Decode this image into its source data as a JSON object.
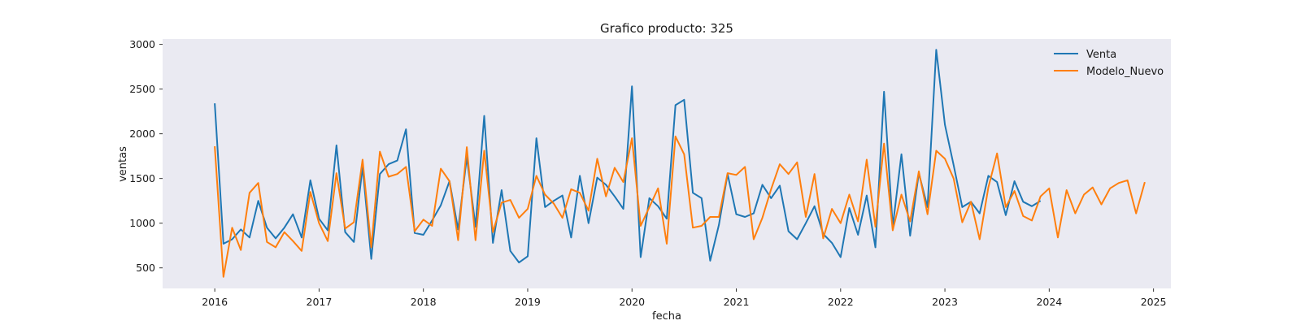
{
  "chart_data": {
    "type": "line",
    "title": "Grafico producto: 325",
    "xlabel": "fecha",
    "ylabel": "ventas",
    "x_start": "2016-01",
    "xlim": [
      "2015-07",
      "2025-03"
    ],
    "ylim": [
      270,
      3060
    ],
    "x_ticks": [
      "2016",
      "2017",
      "2018",
      "2019",
      "2020",
      "2021",
      "2022",
      "2023",
      "2024",
      "2025"
    ],
    "y_ticks": [
      500,
      1000,
      1500,
      2000,
      2500,
      3000
    ],
    "grid": false,
    "background": "#eaeaf2",
    "legend_position": "top-right",
    "series": [
      {
        "name": "Venta",
        "color": "#1f77b4",
        "values": [
          2340,
          770,
          820,
          930,
          840,
          1250,
          950,
          830,
          950,
          1100,
          840,
          1480,
          1050,
          920,
          1870,
          900,
          790,
          1630,
          600,
          1550,
          1660,
          1700,
          2050,
          890,
          870,
          1030,
          1200,
          1470,
          930,
          1740,
          960,
          2200,
          780,
          1370,
          690,
          560,
          630,
          1950,
          1180,
          1250,
          1310,
          840,
          1530,
          1000,
          1510,
          1430,
          1300,
          1160,
          2530,
          620,
          1280,
          1190,
          1050,
          2320,
          2380,
          1340,
          1280,
          580,
          980,
          1550,
          1100,
          1070,
          1110,
          1430,
          1280,
          1420,
          910,
          820,
          1000,
          1190,
          880,
          780,
          620,
          1170,
          870,
          1310,
          730,
          2470,
          960,
          1770,
          860,
          1560,
          1180,
          2940,
          2100,
          1650,
          1180,
          1240,
          1110,
          1530,
          1460,
          1090,
          1470,
          1240,
          1190,
          1250
        ]
      },
      {
        "name": "Modelo_Nuevo",
        "color": "#ff7f0e",
        "values": [
          1860,
          400,
          950,
          700,
          1340,
          1450,
          790,
          730,
          900,
          800,
          690,
          1350,
          1000,
          800,
          1560,
          940,
          1010,
          1710,
          730,
          1800,
          1520,
          1550,
          1630,
          910,
          1040,
          970,
          1610,
          1470,
          810,
          1850,
          810,
          1810,
          900,
          1230,
          1260,
          1060,
          1160,
          1530,
          1320,
          1220,
          1060,
          1380,
          1340,
          1140,
          1720,
          1300,
          1620,
          1460,
          1950,
          970,
          1180,
          1390,
          770,
          1970,
          1770,
          950,
          970,
          1070,
          1070,
          1560,
          1540,
          1630,
          820,
          1060,
          1380,
          1660,
          1550,
          1680,
          1070,
          1550,
          830,
          1160,
          1000,
          1320,
          1020,
          1710,
          960,
          1890,
          920,
          1320,
          1020,
          1580,
          1100,
          1810,
          1720,
          1500,
          1010,
          1240,
          820,
          1400,
          1780,
          1180,
          1360,
          1080,
          1030,
          1300,
          1390,
          840,
          1370,
          1110,
          1320,
          1400,
          1210,
          1390,
          1450,
          1480,
          1110,
          1460
        ]
      }
    ]
  }
}
